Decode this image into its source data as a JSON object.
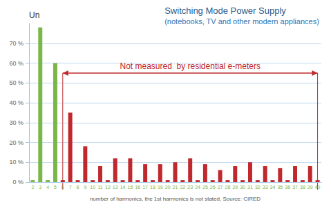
{
  "chart_data": {
    "type": "bar",
    "title": "Switching Mode Power Supply",
    "subtitle": "(notebooks, TV and other modern appliances)",
    "y_label": "Un",
    "x_label": "number of harmonics, the 1st harmonics is not stated, Source: CIRED",
    "annotation": "Not measured  by residential e-meters",
    "categories": [
      "2",
      "3",
      "4",
      "5",
      "6",
      "7",
      "8",
      "9",
      "10",
      "11",
      "12",
      "13",
      "14",
      "15",
      "16",
      "17",
      "18",
      "19",
      "20",
      "21",
      "22",
      "23",
      "24",
      "25",
      "26",
      "27",
      "28",
      "29",
      "30",
      "31",
      "32",
      "33",
      "34",
      "35",
      "36",
      "37",
      "38",
      "39",
      "40"
    ],
    "values": [
      1,
      78,
      1,
      60,
      1,
      35,
      1,
      18,
      1,
      8,
      1,
      12,
      1,
      12,
      1,
      9,
      1,
      9,
      1,
      10,
      1,
      12,
      1,
      9,
      1,
      6,
      1,
      8,
      1,
      10,
      1,
      8,
      1,
      7,
      1,
      8,
      1,
      8,
      1
    ],
    "colors": [
      "#7ab648",
      "#7ab648",
      "#7ab648",
      "#7ab648",
      "#c0282d",
      "#c0282d",
      "#c0282d",
      "#c0282d",
      "#c0282d",
      "#c0282d",
      "#c0282d",
      "#c0282d",
      "#c0282d",
      "#c0282d",
      "#c0282d",
      "#c0282d",
      "#c0282d",
      "#c0282d",
      "#c0282d",
      "#c0282d",
      "#c0282d",
      "#c0282d",
      "#c0282d",
      "#c0282d",
      "#c0282d",
      "#c0282d",
      "#c0282d",
      "#c0282d",
      "#c0282d",
      "#c0282d",
      "#c0282d",
      "#c0282d",
      "#c0282d",
      "#c0282d",
      "#c0282d",
      "#c0282d",
      "#c0282d",
      "#c0282d",
      "#c0282d"
    ],
    "ylim": [
      0,
      80
    ],
    "yticks": [
      {
        "value": 0,
        "label": "0 %"
      },
      {
        "value": 10,
        "label": "10 %"
      },
      {
        "value": 20,
        "label": "20 %"
      },
      {
        "value": 30,
        "label": "30 %"
      },
      {
        "value": 40,
        "label": "40 %"
      },
      {
        "value": 50,
        "label": "50 %"
      },
      {
        "value": 60,
        "label": "60 %"
      },
      {
        "value": 70,
        "label": "70 %"
      }
    ],
    "grid": true
  }
}
